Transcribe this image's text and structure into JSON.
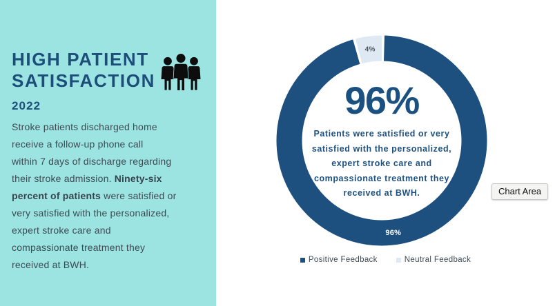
{
  "panel": {
    "title_lines": [
      "HIGH PATIENT",
      "SATISFACTION"
    ],
    "year": "2022",
    "paragraph_lines": [
      [
        {
          "t": "Stroke patients discharged home"
        }
      ],
      [
        {
          "t": "receive a follow-up phone call"
        }
      ],
      [
        {
          "t": "within 7 days of discharge regarding"
        }
      ],
      [
        {
          "t": "their stroke admission. "
        },
        {
          "t": "Ninety-six",
          "b": true
        }
      ],
      [
        {
          "t": "percent of patients",
          "b": true
        },
        {
          "t": " were satisfied or"
        }
      ],
      [
        {
          "t": "very satisfied with the personalized,"
        }
      ],
      [
        {
          "t": "expert stroke care and"
        }
      ],
      [
        {
          "t": "compassionate treatment they"
        }
      ],
      [
        {
          "t": "received at BWH."
        }
      ]
    ],
    "icon": "three-people-icon",
    "bg_color": "#9ce4e1",
    "title_color": "#1d4e79"
  },
  "chart_data": {
    "type": "pie",
    "subtype": "donut",
    "categories": [
      "Positive Feedback",
      "Neutral Feedback"
    ],
    "values": [
      96,
      4
    ],
    "unit": "percent",
    "colors": [
      "#1d507f",
      "#dfe9f4"
    ],
    "data_labels": [
      "96%",
      "4%"
    ],
    "center_title": "96%",
    "center_lines": [
      "Patients were satisfied or very",
      "satisfied with the personalized,",
      "expert stroke care and",
      "compassionate treatment they",
      "received at BWH."
    ],
    "legend_position": "bottom",
    "start_angle_deg": 0,
    "direction": "clockwise",
    "donut_hole_ratio": 0.76
  },
  "tooltip": {
    "label": "Chart Area"
  }
}
